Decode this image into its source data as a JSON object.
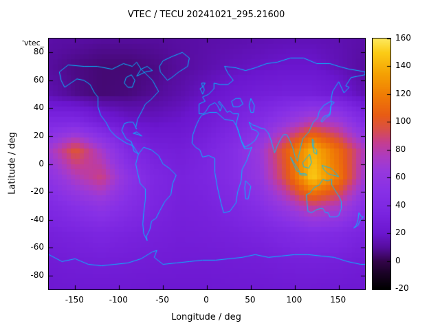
{
  "title": "VTEC / TECU 20241021_295.21600",
  "key_label": "'vtec_",
  "colors": {
    "background": "#ffffff",
    "text": "#000000",
    "coastline": "#00bfff",
    "plot_border": "#000000"
  },
  "chart_data": {
    "type": "heatmap",
    "title": "VTEC / TECU 20241021_295.21600",
    "xlabel": "Longitude / deg",
    "ylabel": "Latitude / deg",
    "value_units": "TECU",
    "xlim": [
      -180,
      180
    ],
    "ylim": [
      -90,
      90
    ],
    "x_ticks": [
      -150,
      -100,
      -50,
      0,
      50,
      100,
      150
    ],
    "y_ticks": [
      80,
      60,
      40,
      20,
      0,
      -20,
      -40,
      -60,
      -80
    ],
    "x": [
      -180,
      -150,
      -120,
      -90,
      -60,
      -30,
      0,
      30,
      60,
      90,
      120,
      150,
      180
    ],
    "y": [
      90,
      70,
      50,
      30,
      10,
      -10,
      -30,
      -50,
      -70,
      -90
    ],
    "values": [
      [
        12,
        11,
        10,
        10,
        10,
        11,
        12,
        13,
        14,
        15,
        15,
        14,
        12
      ],
      [
        10,
        7,
        5,
        5,
        7,
        10,
        13,
        16,
        18,
        20,
        20,
        15,
        10
      ],
      [
        14,
        8,
        5,
        6,
        9,
        13,
        18,
        24,
        28,
        30,
        30,
        24,
        14
      ],
      [
        38,
        40,
        28,
        20,
        18,
        20,
        26,
        34,
        44,
        62,
        80,
        70,
        42
      ],
      [
        70,
        100,
        72,
        40,
        30,
        28,
        34,
        46,
        66,
        105,
        142,
        112,
        75
      ],
      [
        55,
        75,
        88,
        56,
        38,
        32,
        36,
        46,
        62,
        98,
        150,
        118,
        68
      ],
      [
        40,
        50,
        58,
        46,
        35,
        30,
        32,
        38,
        48,
        66,
        86,
        76,
        48
      ],
      [
        30,
        33,
        36,
        33,
        30,
        28,
        29,
        31,
        34,
        39,
        44,
        41,
        33
      ],
      [
        25,
        27,
        28,
        27,
        26,
        25,
        25,
        26,
        27,
        29,
        30,
        29,
        26
      ],
      [
        22,
        23,
        23,
        23,
        22,
        22,
        22,
        23,
        23,
        24,
        24,
        23,
        22
      ]
    ],
    "colorbar": {
      "min": -20,
      "max": 160,
      "ticks": [
        160,
        140,
        120,
        100,
        80,
        60,
        40,
        20,
        0,
        -20
      ],
      "palette_stops": [
        [
          -20,
          "#000000"
        ],
        [
          -8,
          "#1c0228"
        ],
        [
          0,
          "#33044a"
        ],
        [
          10,
          "#560d9e"
        ],
        [
          20,
          "#6b16cf"
        ],
        [
          35,
          "#7b25e0"
        ],
        [
          50,
          "#8730e6"
        ],
        [
          65,
          "#9738dd"
        ],
        [
          75,
          "#ac3bc2"
        ],
        [
          85,
          "#c43d92"
        ],
        [
          95,
          "#d94f48"
        ],
        [
          105,
          "#e85c14"
        ],
        [
          120,
          "#f07d04"
        ],
        [
          135,
          "#f5a203"
        ],
        [
          150,
          "#fbcc16"
        ],
        [
          160,
          "#fde95c"
        ]
      ]
    }
  }
}
